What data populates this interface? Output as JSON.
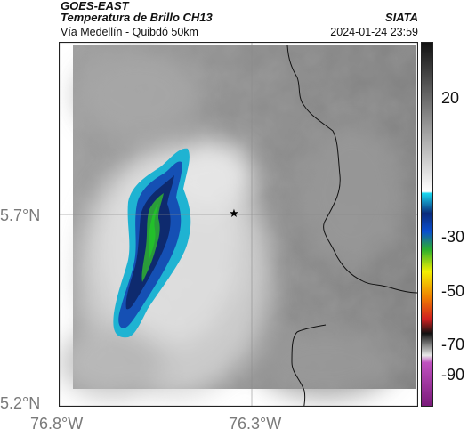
{
  "header": {
    "satellite": "GOES-EAST",
    "product": "Temperatura de Brillo CH13",
    "route": "Vía Medellín - Quibdó 50km",
    "source": "SIATA",
    "timestamp": "2024-01-24 23:59"
  },
  "axes": {
    "lat_labels": [
      "5.7°N",
      "5.2°N"
    ],
    "lon_labels": [
      "76.8°W",
      "76.3°W"
    ]
  },
  "colorbar": {
    "tick_labels": [
      "20",
      "-30",
      "-50",
      "-70",
      "-90"
    ]
  },
  "map": {
    "marker": "star-icon",
    "gridlines": true,
    "colors": {
      "cold_cloud_core": "#22a22a",
      "cloud_edge": "#1fb3d2",
      "deep_blue": "#123a8c",
      "warm_surface": "#888888",
      "warm_cloud": "#f2f2f2"
    }
  }
}
